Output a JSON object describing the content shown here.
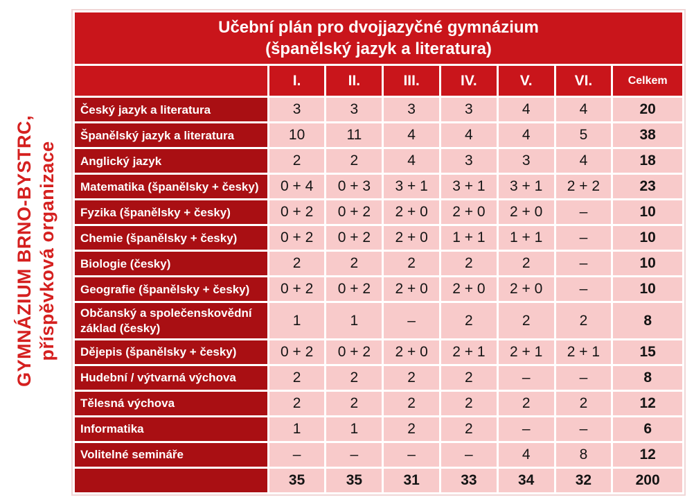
{
  "sidebar_text": {
    "line1": "GYMNÁZIUM BRNO-BYSTRC,",
    "line2": "příspěvková organizace"
  },
  "colors": {
    "header_red": "#c9151b",
    "label_red": "#a90f13",
    "cell_pink": "#f8caca",
    "side_text_red": "#d5201f",
    "grid_white": "#ffffff",
    "outer_border_pink": "#f0d6d6"
  },
  "table": {
    "title_line1": "Učební plán pro dvojjazyčné gymnázium",
    "title_line2": "(španělský jazyk a literatura)",
    "columns": [
      "I.",
      "II.",
      "III.",
      "IV.",
      "V.",
      "VI.",
      "Celkem"
    ],
    "rows": [
      {
        "label": "Český jazyk a literatura",
        "values": [
          "3",
          "3",
          "3",
          "3",
          "4",
          "4"
        ],
        "total": "20"
      },
      {
        "label": "Španělský jazyk a literatura",
        "values": [
          "10",
          "11",
          "4",
          "4",
          "4",
          "5"
        ],
        "total": "38"
      },
      {
        "label": "Anglický jazyk",
        "values": [
          "2",
          "2",
          "4",
          "3",
          "3",
          "4"
        ],
        "total": "18"
      },
      {
        "label": "Matematika (španělsky + česky)",
        "values": [
          "0 + 4",
          "0 + 3",
          "3 + 1",
          "3 + 1",
          "3 + 1",
          "2 + 2"
        ],
        "total": "23"
      },
      {
        "label": "Fyzika (španělsky + česky)",
        "values": [
          "0 + 2",
          "0 + 2",
          "2 + 0",
          "2 + 0",
          "2 + 0",
          "–"
        ],
        "total": "10"
      },
      {
        "label": "Chemie (španělsky + česky)",
        "values": [
          "0 + 2",
          "0 + 2",
          "2 + 0",
          "1 + 1",
          "1 + 1",
          "–"
        ],
        "total": "10"
      },
      {
        "label": "Biologie (česky)",
        "values": [
          "2",
          "2",
          "2",
          "2",
          "2",
          "–"
        ],
        "total": "10"
      },
      {
        "label": "Geografie (španělsky + česky)",
        "values": [
          "0 + 2",
          "0 + 2",
          "2 + 0",
          "2 + 0",
          "2 + 0",
          "–"
        ],
        "total": "10"
      },
      {
        "label": "Občanský a společenskovědní základ (česky)",
        "values": [
          "1",
          "1",
          "–",
          "2",
          "2",
          "2"
        ],
        "total": "8"
      },
      {
        "label": "Dějepis (španělsky + česky)",
        "values": [
          "0 + 2",
          "0 + 2",
          "2 + 0",
          "2 + 1",
          "2 + 1",
          "2 + 1"
        ],
        "total": "15"
      },
      {
        "label": "Hudební / výtvarná výchova",
        "values": [
          "2",
          "2",
          "2",
          "2",
          "–",
          "–"
        ],
        "total": "8"
      },
      {
        "label": "Tělesná výchova",
        "values": [
          "2",
          "2",
          "2",
          "2",
          "2",
          "2"
        ],
        "total": "12"
      },
      {
        "label": "Informatika",
        "values": [
          "1",
          "1",
          "2",
          "2",
          "–",
          "–"
        ],
        "total": "6"
      },
      {
        "label": "Volitelné semináře",
        "values": [
          "–",
          "–",
          "–",
          "–",
          "4",
          "8"
        ],
        "total": "12"
      }
    ],
    "totals_row": {
      "label": "",
      "values": [
        "35",
        "35",
        "31",
        "33",
        "34",
        "32"
      ],
      "total": "200"
    }
  }
}
